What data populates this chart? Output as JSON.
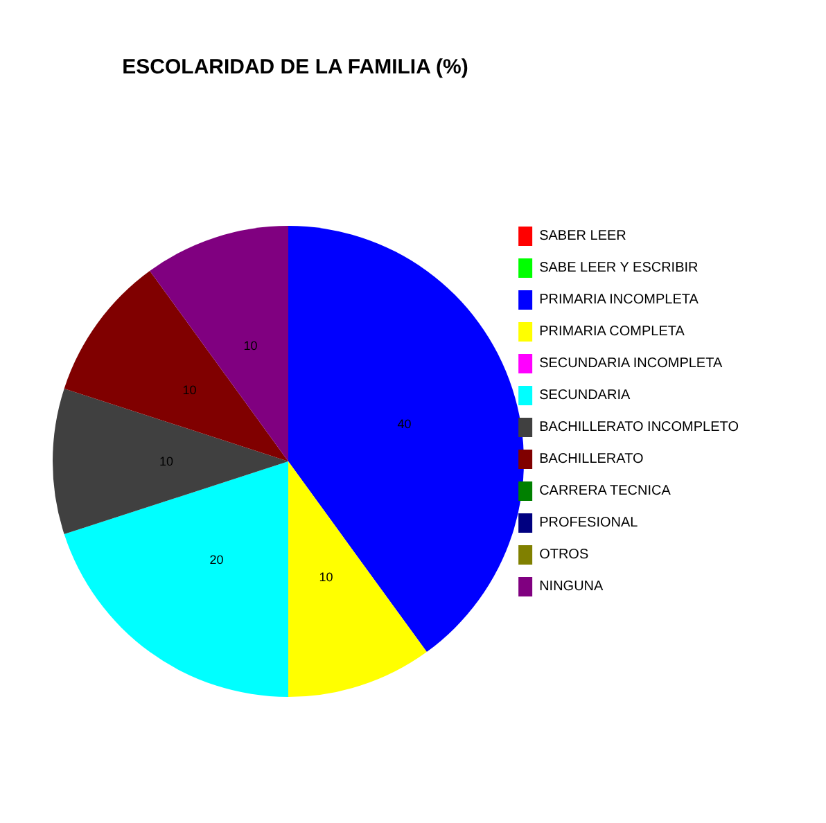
{
  "chart_data": {
    "type": "pie",
    "title": "ESCOLARIDAD DE LA FAMILIA (%)",
    "categories": [
      "SABER LEER",
      "SABE LEER Y ESCRIBIR",
      "PRIMARIA INCOMPLETA",
      "PRIMARIA COMPLETA",
      "SECUNDARIA INCOMPLETA",
      "SECUNDARIA",
      "BACHILLERATO INCOMPLETO",
      "BACHILLERATO",
      "CARRERA TECNICA",
      "PROFESIONAL",
      "OTROS",
      "NINGUNA"
    ],
    "values": [
      0,
      0,
      40,
      10,
      0,
      20,
      10,
      10,
      0,
      0,
      0,
      10
    ],
    "value_labels": [
      null,
      null,
      "40",
      "10",
      null,
      "20",
      "10",
      "10",
      null,
      null,
      null,
      "10"
    ],
    "colors": [
      "#ff0000",
      "#00ff00",
      "#0000ff",
      "#ffff00",
      "#ff00ff",
      "#00ffff",
      "#404040",
      "#800000",
      "#008000",
      "#000080",
      "#808000",
      "#800080"
    ],
    "legend": "right"
  }
}
